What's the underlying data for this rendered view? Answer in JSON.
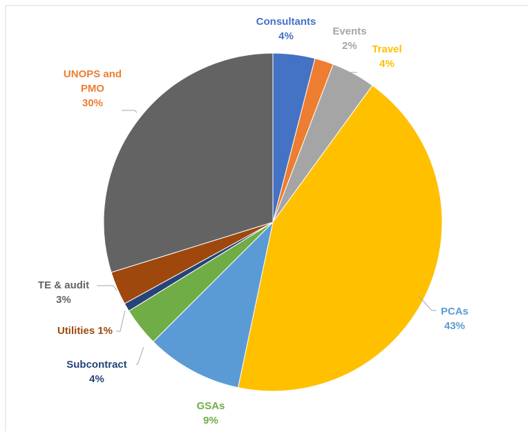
{
  "chart_data": {
    "type": "pie",
    "slices": [
      {
        "name": "Consultants",
        "value": 4,
        "label_lines": [
          "Consultants",
          "4%"
        ],
        "color": "#4472C4",
        "label_color": "#4472C4"
      },
      {
        "name": "Events",
        "value": 1.8,
        "label_lines": [
          "Events",
          "2%"
        ],
        "color": "#ED7D31",
        "label_color": "#A5A5A5"
      },
      {
        "name": "Travel",
        "value": 4.2,
        "label_lines": [
          "Travel",
          "4%"
        ],
        "color": "#A5A5A5",
        "label_color": "#FFC000"
      },
      {
        "name": "PCAs",
        "value": 43.3,
        "label_lines": [
          "PCAs",
          "43%"
        ],
        "color": "#FFC000",
        "label_color": "#5B9BD5"
      },
      {
        "name": "GSAs",
        "value": 9.2,
        "label_lines": [
          "GSAs",
          "9%"
        ],
        "color": "#5B9BD5",
        "label_color": "#70AD47"
      },
      {
        "name": "Subcontract",
        "value": 3.7,
        "label_lines": [
          "Subcontract",
          "4%"
        ],
        "color": "#70AD47",
        "label_color": "#264478"
      },
      {
        "name": "Utilities",
        "value": 0.8,
        "label_lines": [
          "Utilities 1%"
        ],
        "color": "#264478",
        "label_color": "#9E480E"
      },
      {
        "name": "TE & audit",
        "value": 3.2,
        "label_lines": [
          "TE & audit",
          "3%"
        ],
        "color": "#9E480E",
        "label_color": "#636363"
      },
      {
        "name": "UNOPS and PMO",
        "value": 29.8,
        "label_lines": [
          "UNOPS and",
          "PMO",
          "30%"
        ],
        "color": "#636363",
        "label_color": "#ED7D31"
      }
    ]
  }
}
